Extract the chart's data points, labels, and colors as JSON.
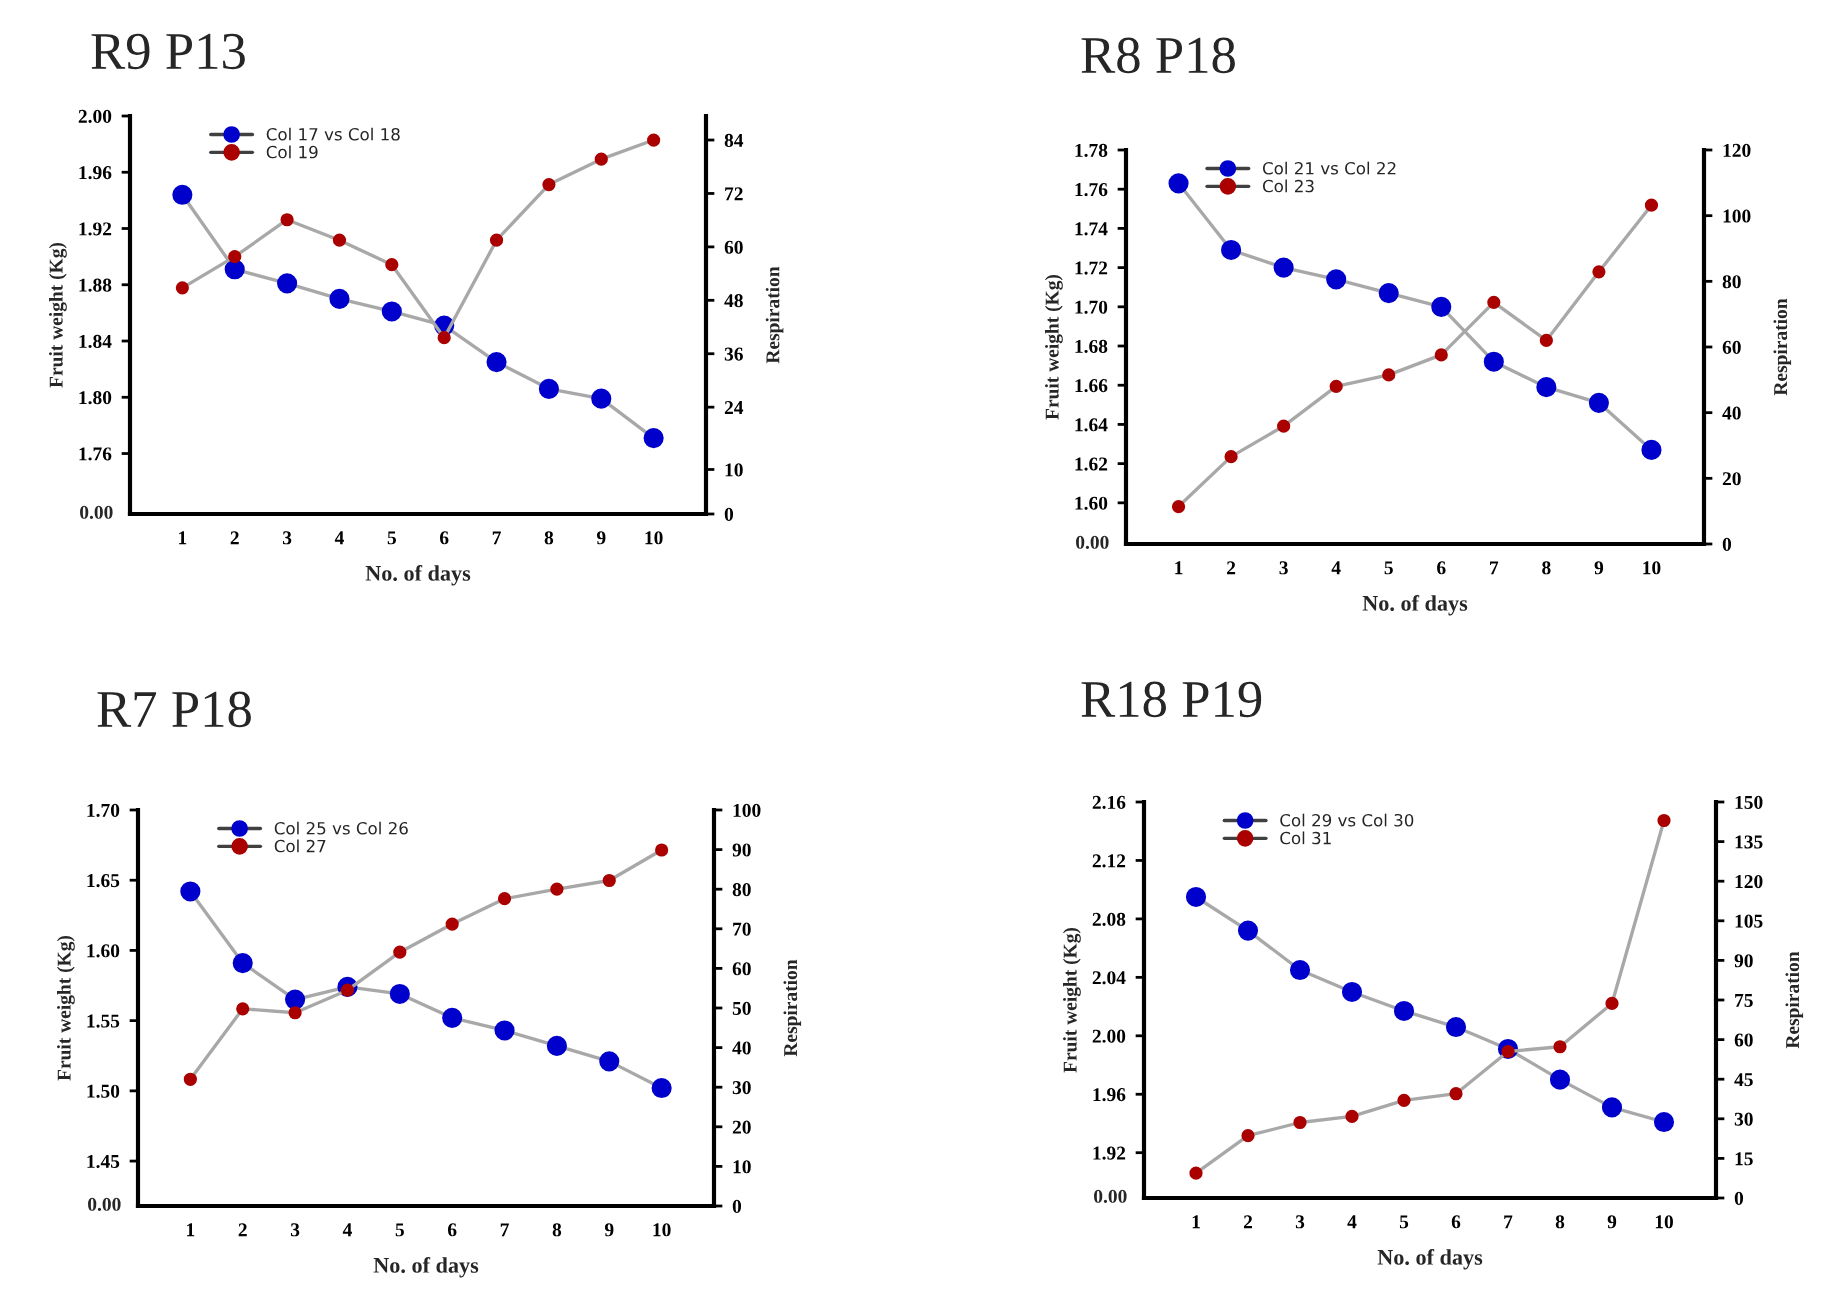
{
  "chart_data": [
    {
      "type": "line",
      "title": "R9 P13",
      "xlabel": "No. of days",
      "ylabel": "Fruit weight (Kg)",
      "y2label": "Respiration",
      "legend": "top left",
      "marker": "circle",
      "grid": false,
      "x": [
        1,
        2,
        3,
        4,
        5,
        6,
        7,
        8,
        9,
        10
      ],
      "xlim": [
        0,
        11
      ],
      "xticks": [
        1,
        2,
        3,
        4,
        5,
        6,
        7,
        8,
        9,
        10
      ],
      "annotations": [
        "0.00"
      ],
      "ylim": [
        1.717,
        2.0
      ],
      "yticks": [
        1.76,
        {
          "value": 1.8,
          "label": "1.80"
        },
        1.84,
        1.88,
        1.92,
        1.96,
        {
          "value": 2.0,
          "label": "2.00"
        }
      ],
      "y2lim": [
        0,
        89.4
      ],
      "y2ticks": [
        0,
        10,
        24,
        36,
        48,
        60,
        72,
        84
      ],
      "series": [
        {
          "name": "Col 17 vs Col 18",
          "color": "#0000cc",
          "values": [
            1.944,
            1.891,
            1.881,
            1.87,
            1.861,
            1.851,
            1.825,
            1.806,
            1.799,
            1.771
          ]
        },
        {
          "name": "Col 19",
          "color": "#aa0000",
          "axis": "y2",
          "values": [
            50.8,
            57.8,
            66.1,
            61.5,
            56.0,
            39.6,
            61.5,
            74.0,
            79.7,
            84.0
          ]
        }
      ]
    },
    {
      "type": "line",
      "title": "R8 P18",
      "xlabel": "No. of days",
      "ylabel": "Fruit weight (Kg)",
      "y2label": "Respiration",
      "legend": "top left",
      "marker": "circle",
      "grid": false,
      "x": [
        1,
        2,
        3,
        4,
        5,
        6,
        7,
        8,
        9,
        10
      ],
      "xlim": [
        0,
        11
      ],
      "xticks": [
        1,
        2,
        3,
        4,
        5,
        6,
        7,
        8,
        9,
        10
      ],
      "annotations": [
        "0.00"
      ],
      "ylim": [
        1.579,
        1.78
      ],
      "yticks": [
        {
          "value": 1.6,
          "label": "1.60"
        },
        1.62,
        1.64,
        1.66,
        1.68,
        {
          "value": 1.7,
          "label": "1.70"
        },
        1.72,
        1.74,
        1.76,
        1.78
      ],
      "y2lim": [
        0,
        120
      ],
      "y2ticks": [
        0,
        20,
        40,
        60,
        80,
        100,
        120
      ],
      "series": [
        {
          "name": "Col 21 vs Col 22",
          "color": "#0000cc",
          "values": [
            1.763,
            1.729,
            1.72,
            1.714,
            1.707,
            1.7,
            1.672,
            1.659,
            1.651,
            1.627
          ]
        },
        {
          "name": "Col 23",
          "color": "#aa0000",
          "axis": "y2",
          "values": [
            11.4,
            26.6,
            35.9,
            48.0,
            51.5,
            57.6,
            73.6,
            62.0,
            82.9,
            103.2
          ]
        }
      ]
    },
    {
      "type": "line",
      "title": "R7 P18",
      "xlabel": "No. of days",
      "ylabel": "Fruit weight (Kg)",
      "y2label": "Respiration",
      "legend": "top left",
      "marker": "circle",
      "grid": false,
      "x": [
        1,
        2,
        3,
        4,
        5,
        6,
        7,
        8,
        9,
        10
      ],
      "xlim": [
        0,
        11
      ],
      "xticks": [
        1,
        2,
        3,
        4,
        5,
        6,
        7,
        8,
        9,
        10
      ],
      "annotations": [
        "0.00"
      ],
      "ylim": [
        1.418,
        1.7
      ],
      "yticks": [
        1.45,
        {
          "value": 1.5,
          "label": "1.50"
        },
        1.55,
        {
          "value": 1.6,
          "label": "1.60"
        },
        1.65,
        {
          "value": 1.7,
          "label": "1.70"
        }
      ],
      "y2lim": [
        0,
        100
      ],
      "y2ticks": [
        0,
        10,
        20,
        30,
        40,
        50,
        60,
        70,
        80,
        90,
        100
      ],
      "series": [
        {
          "name": "Col 25 vs Col 26",
          "color": "#0000cc",
          "values": [
            1.642,
            1.591,
            1.565,
            1.574,
            1.569,
            1.552,
            1.543,
            1.532,
            1.521,
            1.502
          ]
        },
        {
          "name": "Col 27",
          "color": "#aa0000",
          "axis": "y2",
          "values": [
            32.0,
            49.8,
            48.8,
            54.5,
            64.1,
            71.2,
            77.6,
            80.0,
            82.2,
            89.9
          ]
        }
      ]
    },
    {
      "type": "line",
      "title": "R18 P19",
      "xlabel": "No. of days",
      "ylabel": "Fruit weight (Kg)",
      "y2label": "Respiration",
      "legend": "top left",
      "marker": "circle",
      "grid": false,
      "x": [
        1,
        2,
        3,
        4,
        5,
        6,
        7,
        8,
        9,
        10
      ],
      "xlim": [
        0,
        11
      ],
      "xticks": [
        1,
        2,
        3,
        4,
        5,
        6,
        7,
        8,
        9,
        10
      ],
      "annotations": [
        "0.00"
      ],
      "ylim": [
        1.889,
        2.16
      ],
      "yticks": [
        1.92,
        1.96,
        {
          "value": 2.0,
          "label": "2.00"
        },
        2.04,
        2.08,
        2.12,
        2.16
      ],
      "y2lim": [
        0,
        150
      ],
      "y2ticks": [
        0,
        15,
        30,
        45,
        60,
        75,
        90,
        105,
        120,
        135,
        150
      ],
      "series": [
        {
          "name": "Col 29 vs Col 30",
          "color": "#0000cc",
          "values": [
            2.095,
            2.072,
            2.045,
            2.03,
            2.017,
            2.006,
            1.991,
            1.97,
            1.951,
            1.941
          ]
        },
        {
          "name": "Col 31",
          "color": "#aa0000",
          "axis": "y2",
          "values": [
            9.4,
            23.6,
            28.6,
            30.9,
            37.0,
            39.5,
            55.5,
            57.3,
            73.7,
            143.0
          ]
        }
      ]
    }
  ]
}
